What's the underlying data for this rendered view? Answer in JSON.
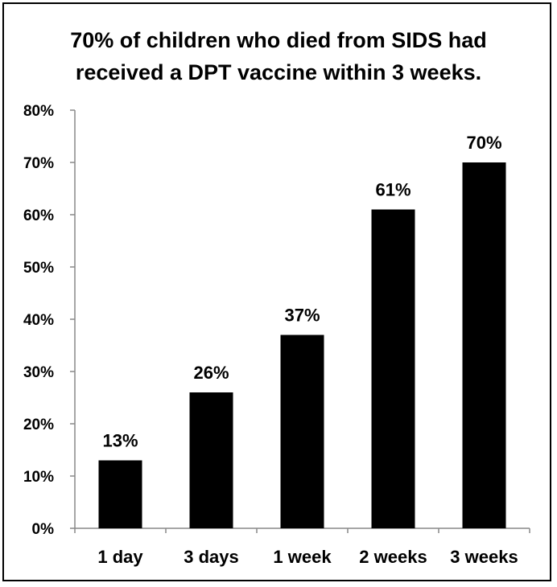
{
  "chart_data": {
    "type": "bar",
    "title": "70% of children who died from SIDS had received a DPT vaccine within 3 weeks.",
    "categories": [
      "1 day",
      "3 days",
      "1 week",
      "2 weeks",
      "3 weeks"
    ],
    "values": [
      13,
      26,
      37,
      61,
      70
    ],
    "value_labels": [
      "13%",
      "26%",
      "37%",
      "61%",
      "70%"
    ],
    "yticks": [
      0,
      10,
      20,
      30,
      40,
      50,
      60,
      70,
      80
    ],
    "ytick_labels": [
      "0%",
      "10%",
      "20%",
      "30%",
      "40%",
      "50%",
      "60%",
      "70%",
      "80%"
    ],
    "ylim": [
      0,
      80
    ],
    "xlabel": "",
    "ylabel": "",
    "grid": false,
    "legend": "none",
    "bar_color": "#000000"
  }
}
